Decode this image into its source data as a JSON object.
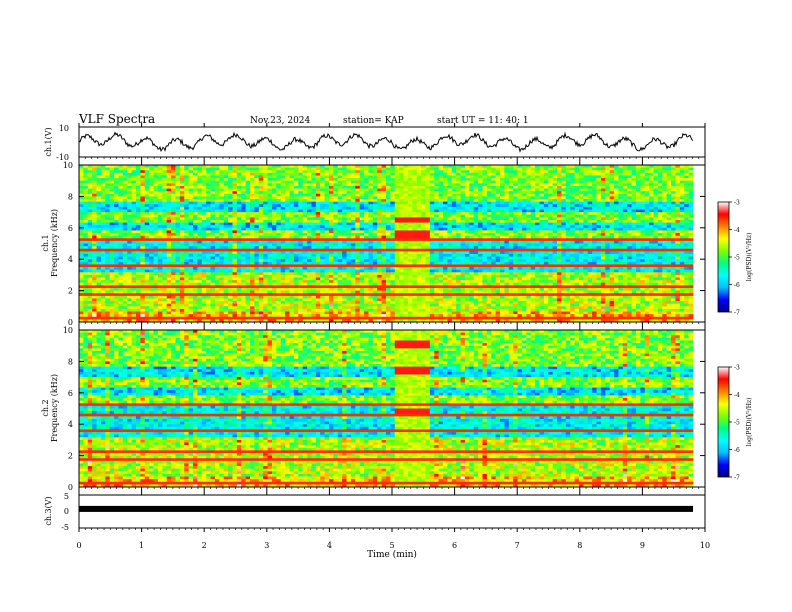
{
  "header": {
    "title": "VLF Spectra",
    "date": "Nov.23, 2024",
    "station": "station= KAP",
    "start": "start  UT  =   11: 40: 1"
  },
  "chart_data": [
    {
      "type": "line",
      "panel": "ch1-waveform",
      "ylabel": "ch.1(V)",
      "ylim": [
        -10,
        10
      ],
      "ytick_labels": [
        "10",
        "-10"
      ],
      "xlim": [
        0,
        10
      ],
      "note_values": "oscillating waveform roughly between -6 and +6 V",
      "amplitude_approx": 6
    },
    {
      "type": "heatmap",
      "panel": "ch1-spectrogram",
      "ylabel": "ch.1\nFrequency (kHz)",
      "ylabel_line1": "ch.1",
      "ylabel_line2": "Frequency (kHz)",
      "ylim": [
        0,
        10
      ],
      "ytick_labels": [
        "0",
        "2",
        "4",
        "6",
        "8",
        "10"
      ],
      "xlim": [
        0,
        10
      ],
      "burst_interval_min": [
        5.0,
        5.6
      ],
      "colorbar": {
        "label": "log(PSD)(V²/Hz)",
        "range": [
          -7,
          -3
        ],
        "tick_labels": [
          "-3",
          "-4",
          "-5",
          "-6",
          "-7"
        ],
        "colormap": [
          "#000080",
          "#0000ff",
          "#00bfff",
          "#00ffff",
          "#00ff80",
          "#80ff00",
          "#ffff00",
          "#ff8000",
          "#ff0000",
          "#ffffff"
        ]
      }
    },
    {
      "type": "heatmap",
      "panel": "ch2-spectrogram",
      "ylabel_line1": "ch.2",
      "ylabel_line2": "Frequency (kHz)",
      "ylim": [
        0,
        10
      ],
      "ytick_labels": [
        "0",
        "2",
        "4",
        "6",
        "8",
        "10"
      ],
      "xlim": [
        0,
        10
      ],
      "burst_interval_min": [
        5.0,
        5.6
      ],
      "colorbar": {
        "label": "log(PSD)(V²/Hz)",
        "range": [
          -7,
          -3
        ],
        "tick_labels": [
          "-3",
          "-4",
          "-5",
          "-6",
          "-7"
        ]
      }
    },
    {
      "type": "line",
      "panel": "ch3-waveform",
      "ylabel": "ch.3(V)",
      "ylim": [
        -5,
        5
      ],
      "ytick_labels": [
        "5",
        "0",
        "-5"
      ],
      "xlim": [
        0,
        10
      ],
      "note_values": "narrow dense band near +0.8 V",
      "band_center_v": 0.8
    }
  ],
  "xaxis": {
    "label": "Time (min)",
    "ticks": [
      0,
      1,
      2,
      3,
      4,
      5,
      6,
      7,
      8,
      9,
      10
    ],
    "tick_labels": [
      "0",
      "1",
      "2",
      "3",
      "4",
      "5",
      "6",
      "7",
      "8",
      "9",
      "10"
    ]
  }
}
